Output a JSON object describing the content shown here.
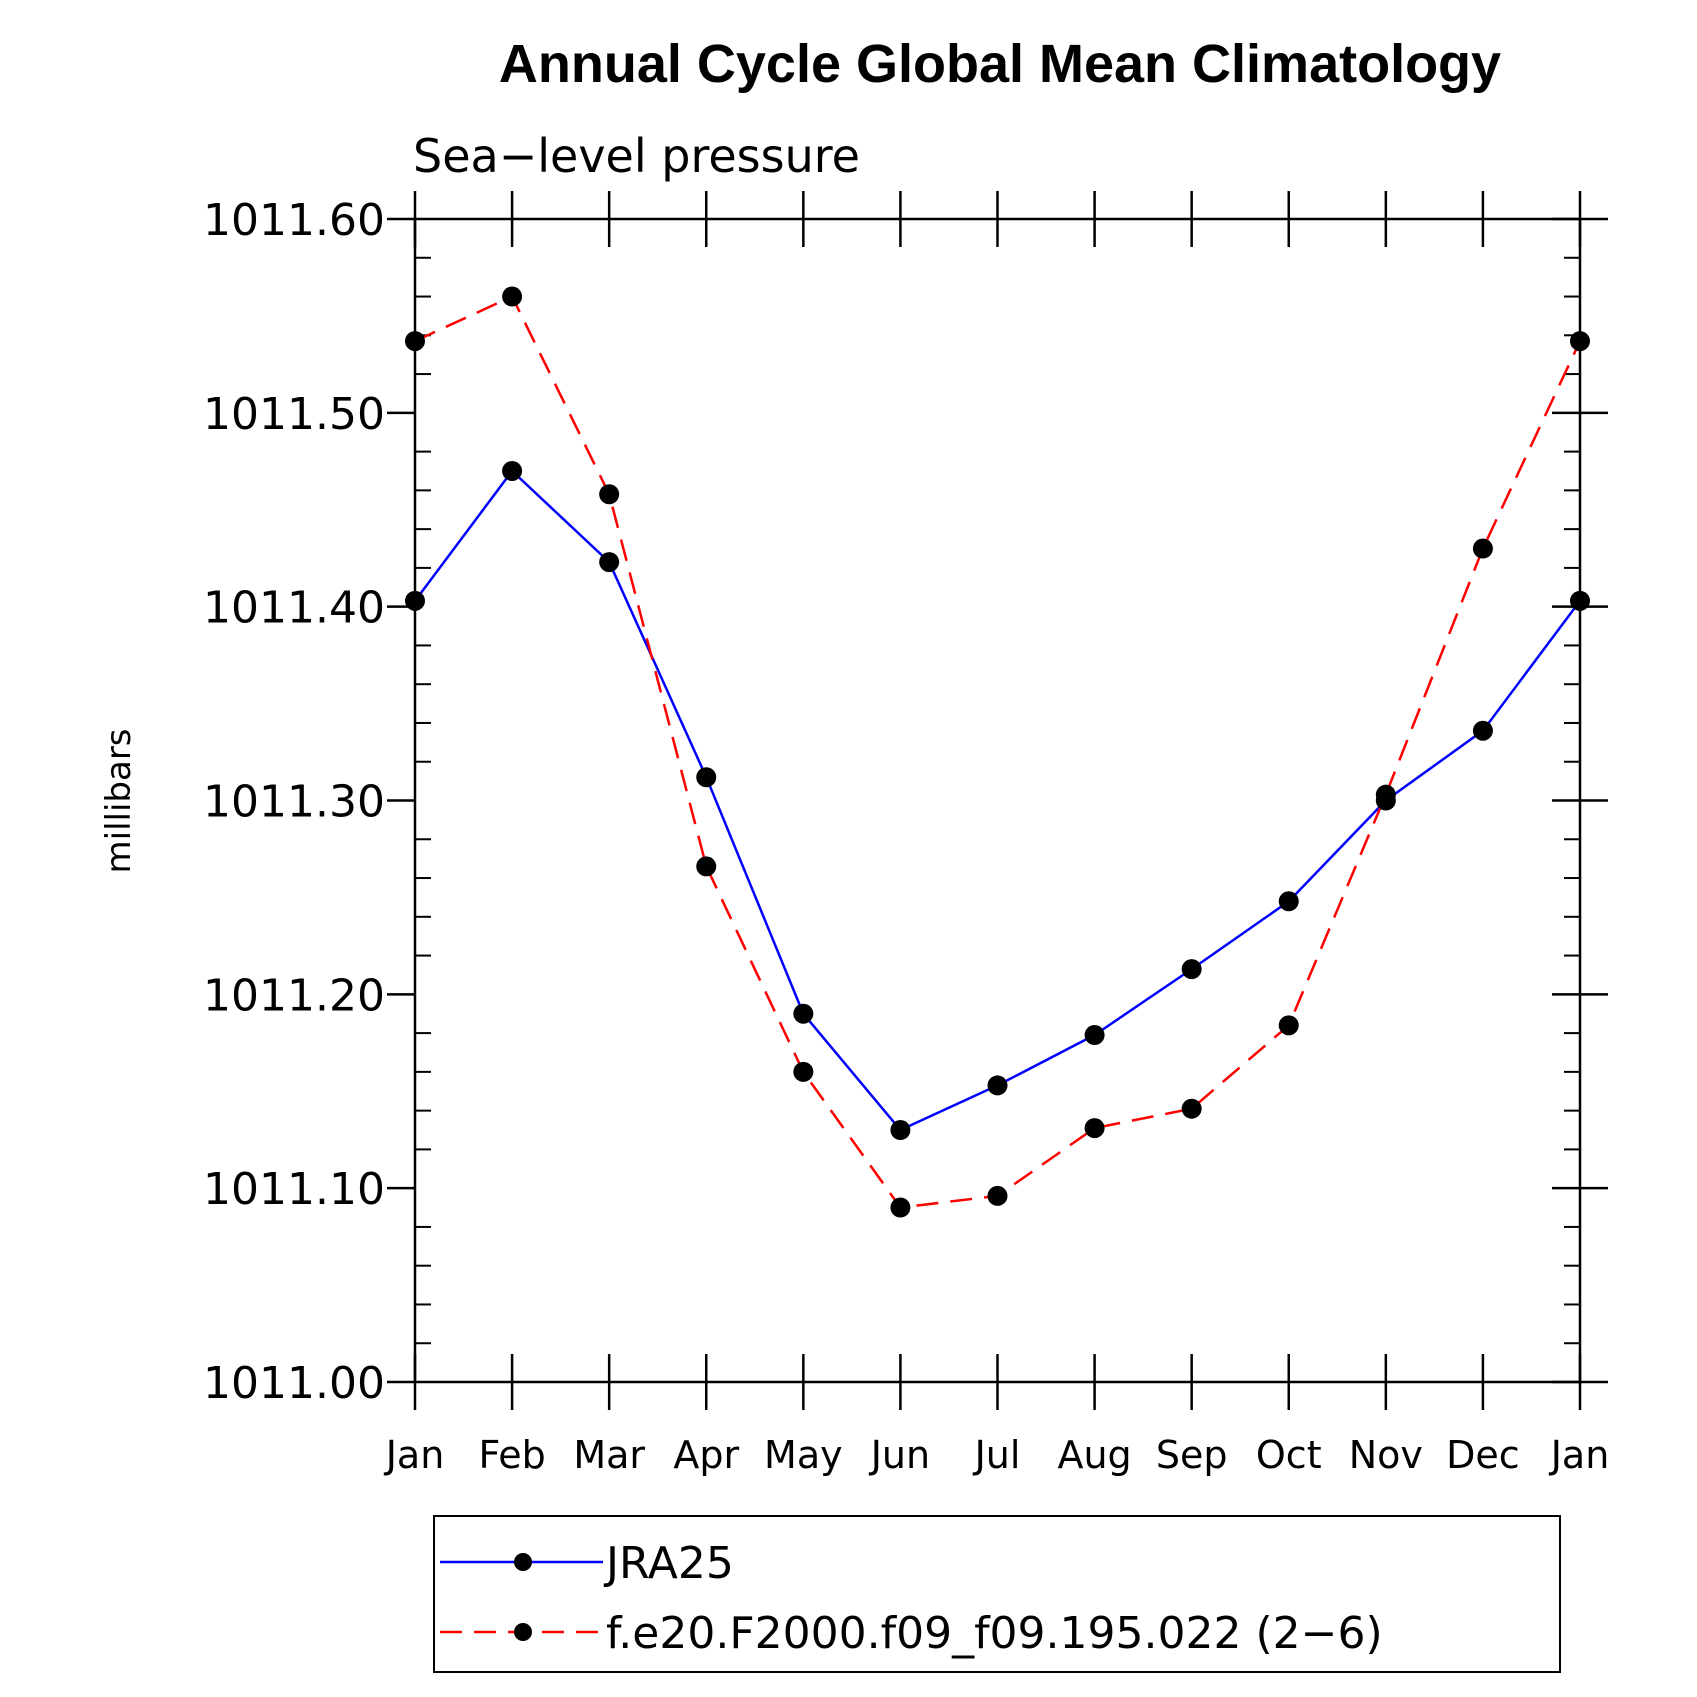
{
  "chart_data": {
    "type": "line",
    "title": "Annual Cycle Global Mean Climatology",
    "subtitle": "Sea−level pressure",
    "xlabel": "",
    "ylabel": "millibars",
    "categories": [
      "Jan",
      "Feb",
      "Mar",
      "Apr",
      "May",
      "Jun",
      "Jul",
      "Aug",
      "Sep",
      "Oct",
      "Nov",
      "Dec",
      "Jan"
    ],
    "ylim": [
      1011.0,
      1011.6
    ],
    "yticks": [
      1011.0,
      1011.1,
      1011.2,
      1011.3,
      1011.4,
      1011.5,
      1011.6
    ],
    "ytick_labels": [
      "1011.00",
      "1011.10",
      "1011.20",
      "1011.30",
      "1011.40",
      "1011.50",
      "1011.60"
    ],
    "legend_position": "bottom",
    "series": [
      {
        "name": "JRA25",
        "color": "#0000ff",
        "dash": "solid",
        "values": [
          1011.403,
          1011.47,
          1011.423,
          1011.312,
          1011.19,
          1011.13,
          1011.153,
          1011.179,
          1011.213,
          1011.248,
          1011.3,
          1011.336,
          1011.403
        ]
      },
      {
        "name": "f.e20.F2000.f09_f09.195.022 (2−6)",
        "color": "#ff0000",
        "dash": "dashed",
        "values": [
          1011.537,
          1011.56,
          1011.458,
          1011.266,
          1011.16,
          1011.09,
          1011.096,
          1011.131,
          1011.141,
          1011.184,
          1011.303,
          1011.43,
          1011.537
        ]
      }
    ]
  }
}
